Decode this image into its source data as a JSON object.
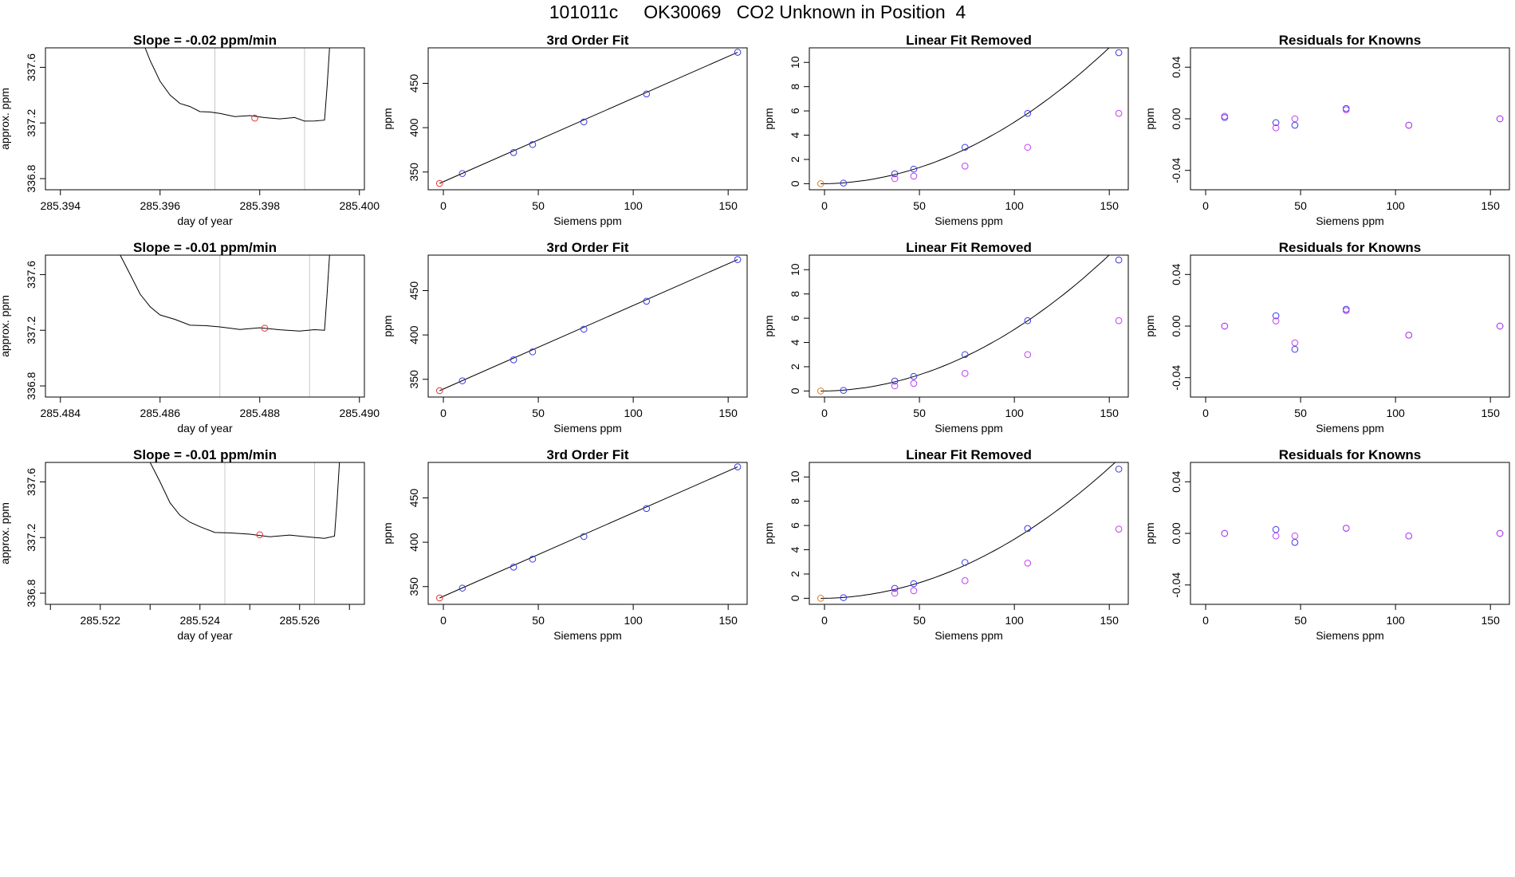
{
  "figure": {
    "title": "101011c     OK30069   CO2 Unknown in Position  4",
    "colors": {
      "axis": "#000000",
      "curve": "#000000",
      "known": "#3a3ae6",
      "knownAlt": "#c040f0",
      "unknown": "#e03030",
      "origin": "#e07a20",
      "vline": "#c8c8c8"
    }
  },
  "chart_data": [
    {
      "type": "line",
      "title": "Slope =  -0.02  ppm/min",
      "xlabel": "day of year",
      "ylabel": "approx. ppm",
      "xlim": [
        285.3937,
        285.4001
      ],
      "ylim": [
        336.72,
        337.74
      ],
      "xticks": [
        285.394,
        285.396,
        285.398,
        285.4
      ],
      "xtick_decimals": 3,
      "yticks": [
        336.8,
        337.2,
        337.6
      ],
      "ytick_decimals": 1,
      "vlines": [
        285.3971,
        285.3989
      ],
      "series": [
        {
          "name": "trace",
          "x": [
            285.3957,
            285.3958,
            285.396,
            285.3962,
            285.3964,
            285.3966,
            285.3968,
            285.397,
            285.3972,
            285.3975,
            285.3978,
            285.3981,
            285.3984,
            285.3987,
            285.3989,
            285.3991,
            285.3993,
            285.39935,
            285.3994
          ],
          "y": [
            337.74,
            337.65,
            337.5,
            337.4,
            337.34,
            337.31,
            337.29,
            337.275,
            337.265,
            337.255,
            337.245,
            337.24,
            337.235,
            337.23,
            337.22,
            337.215,
            337.22,
            337.45,
            337.74
          ]
        }
      ],
      "markers": [
        {
          "x": 285.3979,
          "y": 337.235,
          "color": "unknown"
        }
      ]
    },
    {
      "type": "scatter",
      "title": "3rd Order Fit",
      "xlabel": "Siemens ppm",
      "ylabel": "ppm",
      "xlim": [
        -8,
        160
      ],
      "ylim": [
        330,
        490
      ],
      "xticks": [
        0,
        50,
        100,
        150
      ],
      "xtick_decimals": 0,
      "yticks": [
        350,
        400,
        450
      ],
      "ytick_decimals": 0,
      "line": {
        "x": [
          -2,
          155
        ],
        "y": [
          337.2,
          485
        ]
      },
      "series": [
        {
          "name": "knowns",
          "color": "known",
          "x": [
            10,
            37,
            47,
            74,
            107,
            155
          ],
          "y": [
            348.3,
            372,
            381,
            406.5,
            438,
            485
          ]
        },
        {
          "name": "unknown",
          "color": "unknown",
          "x": [
            -2
          ],
          "y": [
            337.2
          ]
        }
      ]
    },
    {
      "type": "scatter",
      "title": "Linear Fit Removed",
      "xlabel": "Siemens ppm",
      "ylabel": "ppm",
      "xlim": [
        -8,
        160
      ],
      "ylim": [
        -0.5,
        11.2
      ],
      "xticks": [
        0,
        50,
        100,
        150
      ],
      "xtick_decimals": 0,
      "yticks": [
        0,
        2,
        4,
        6,
        8,
        10
      ],
      "ytick_decimals": 0,
      "curve": {
        "coef": [
          -0.005,
          0.0028,
          0.00048
        ]
      },
      "series": [
        {
          "name": "cubic",
          "color": "known",
          "x": [
            10,
            37,
            47,
            74,
            107,
            155
          ],
          "y": [
            0.05,
            0.82,
            1.2,
            3.0,
            5.8,
            10.8
          ]
        },
        {
          "name": "removed",
          "color": "knownAlt",
          "x": [
            37,
            47,
            74,
            107,
            155
          ],
          "y": [
            0.42,
            0.62,
            1.45,
            3.0,
            5.8
          ]
        },
        {
          "name": "origin",
          "color": "origin",
          "x": [
            -2
          ],
          "y": [
            0
          ]
        }
      ]
    },
    {
      "type": "scatter",
      "title": "Residuals for Knowns",
      "xlabel": "Siemens ppm",
      "ylabel": "ppm",
      "xlim": [
        -8,
        160
      ],
      "ylim": [
        -0.055,
        0.055
      ],
      "xticks": [
        0,
        50,
        100,
        150
      ],
      "xtick_decimals": 0,
      "yticks": [
        -0.04,
        0.0,
        0.04
      ],
      "ytick_decimals": 2,
      "series": [
        {
          "name": "a",
          "color": "known",
          "x": [
            10,
            37,
            47,
            74,
            107,
            155
          ],
          "y": [
            0.001,
            -0.003,
            -0.005,
            0.008,
            -0.005,
            0.0
          ]
        },
        {
          "name": "b",
          "color": "knownAlt",
          "x": [
            10,
            37,
            47,
            74,
            107,
            155
          ],
          "y": [
            0.002,
            -0.007,
            0.0,
            0.007,
            -0.005,
            0.0
          ]
        }
      ]
    },
    {
      "type": "line",
      "title": "Slope =  -0.01  ppm/min",
      "xlabel": "day of year",
      "ylabel": "approx. ppm",
      "xlim": [
        285.4837,
        285.4901
      ],
      "ylim": [
        336.72,
        337.74
      ],
      "xticks": [
        285.484,
        285.486,
        285.488,
        285.49
      ],
      "xtick_decimals": 3,
      "yticks": [
        336.8,
        337.2,
        337.6
      ],
      "ytick_decimals": 1,
      "vlines": [
        285.4872,
        285.489
      ],
      "series": [
        {
          "name": "trace",
          "x": [
            285.4852,
            285.4854,
            285.4856,
            285.4858,
            285.486,
            285.4863,
            285.4866,
            285.4869,
            285.4872,
            285.4876,
            285.488,
            285.4884,
            285.4888,
            285.4891,
            285.4893,
            285.48935,
            285.4894
          ],
          "y": [
            337.74,
            337.6,
            337.46,
            337.37,
            337.31,
            337.27,
            337.245,
            337.23,
            337.22,
            337.215,
            337.21,
            337.205,
            337.2,
            337.195,
            337.2,
            337.45,
            337.74
          ]
        }
      ],
      "markers": [
        {
          "x": 285.4881,
          "y": 337.215,
          "color": "unknown"
        }
      ]
    },
    {
      "type": "scatter",
      "title": "3rd Order Fit",
      "xlabel": "Siemens ppm",
      "ylabel": "ppm",
      "xlim": [
        -8,
        160
      ],
      "ylim": [
        330,
        490
      ],
      "xticks": [
        0,
        50,
        100,
        150
      ],
      "xtick_decimals": 0,
      "yticks": [
        350,
        400,
        450
      ],
      "ytick_decimals": 0,
      "line": {
        "x": [
          -2,
          155
        ],
        "y": [
          337.2,
          485
        ]
      },
      "series": [
        {
          "name": "knowns",
          "color": "known",
          "x": [
            10,
            37,
            47,
            74,
            107,
            155
          ],
          "y": [
            348.3,
            372,
            381,
            406.5,
            438,
            485
          ]
        },
        {
          "name": "unknown",
          "color": "unknown",
          "x": [
            -2
          ],
          "y": [
            337.2
          ]
        }
      ]
    },
    {
      "type": "scatter",
      "title": "Linear Fit Removed",
      "xlabel": "Siemens ppm",
      "ylabel": "ppm",
      "xlim": [
        -8,
        160
      ],
      "ylim": [
        -0.5,
        11.2
      ],
      "xticks": [
        0,
        50,
        100,
        150
      ],
      "xtick_decimals": 0,
      "yticks": [
        0,
        2,
        4,
        6,
        8,
        10
      ],
      "ytick_decimals": 0,
      "curve": {
        "coef": [
          -0.005,
          0.0028,
          0.00048
        ]
      },
      "series": [
        {
          "name": "cubic",
          "color": "known",
          "x": [
            10,
            37,
            47,
            74,
            107,
            155
          ],
          "y": [
            0.05,
            0.82,
            1.2,
            3.0,
            5.8,
            10.8
          ]
        },
        {
          "name": "removed",
          "color": "knownAlt",
          "x": [
            37,
            47,
            74,
            107,
            155
          ],
          "y": [
            0.42,
            0.62,
            1.45,
            3.0,
            5.8
          ]
        },
        {
          "name": "origin",
          "color": "origin",
          "x": [
            -2
          ],
          "y": [
            0
          ]
        }
      ]
    },
    {
      "type": "scatter",
      "title": "Residuals for Knowns",
      "xlabel": "Siemens ppm",
      "ylabel": "ppm",
      "xlim": [
        -8,
        160
      ],
      "ylim": [
        -0.055,
        0.055
      ],
      "xticks": [
        0,
        50,
        100,
        150
      ],
      "xtick_decimals": 0,
      "yticks": [
        -0.04,
        0.0,
        0.04
      ],
      "ytick_decimals": 2,
      "series": [
        {
          "name": "a",
          "color": "known",
          "x": [
            10,
            37,
            47,
            74,
            107,
            155
          ],
          "y": [
            0.0,
            0.008,
            -0.018,
            0.013,
            -0.007,
            0.0
          ]
        },
        {
          "name": "b",
          "color": "knownAlt",
          "x": [
            10,
            37,
            47,
            74,
            107,
            155
          ],
          "y": [
            0.0,
            0.004,
            -0.013,
            0.012,
            -0.007,
            0.0
          ]
        }
      ]
    },
    {
      "type": "line",
      "title": "Slope =  -0.01  ppm/min",
      "xlabel": "day of year",
      "ylabel": "approx. ppm",
      "xlim": [
        285.5209,
        285.5273
      ],
      "ylim": [
        336.72,
        337.74
      ],
      "xticks": [
        285.522,
        285.524,
        285.526
      ],
      "xtick_decimals": 3,
      "minor_ticks": [
        285.521,
        285.523,
        285.525,
        285.527
      ],
      "vlines": [
        285.5245,
        285.5263
      ],
      "yticks": [
        336.8,
        337.2,
        337.6
      ],
      "ytick_decimals": 1,
      "series": [
        {
          "name": "trace",
          "x": [
            285.523,
            285.5232,
            285.5234,
            285.5236,
            285.5238,
            285.524,
            285.5243,
            285.5246,
            285.525,
            285.5254,
            285.5258,
            285.5262,
            285.5265,
            285.5267,
            285.52675,
            285.5268
          ],
          "y": [
            337.74,
            337.6,
            337.45,
            337.36,
            337.31,
            337.27,
            337.245,
            337.23,
            337.22,
            337.215,
            337.21,
            337.205,
            337.2,
            337.21,
            337.45,
            337.74
          ]
        }
      ],
      "markers": [
        {
          "x": 285.5252,
          "y": 337.22,
          "color": "unknown"
        }
      ]
    },
    {
      "type": "scatter",
      "title": "3rd Order Fit",
      "xlabel": "Siemens ppm",
      "ylabel": "ppm",
      "xlim": [
        -8,
        160
      ],
      "ylim": [
        330,
        490
      ],
      "xticks": [
        0,
        50,
        100,
        150
      ],
      "xtick_decimals": 0,
      "yticks": [
        350,
        400,
        450
      ],
      "ytick_decimals": 0,
      "line": {
        "x": [
          -2,
          155
        ],
        "y": [
          337.2,
          485
        ]
      },
      "series": [
        {
          "name": "knowns",
          "color": "known",
          "x": [
            10,
            37,
            47,
            74,
            107,
            155
          ],
          "y": [
            348.3,
            372,
            381,
            406.5,
            438,
            485
          ]
        },
        {
          "name": "unknown",
          "color": "unknown",
          "x": [
            -2
          ],
          "y": [
            337.2
          ]
        }
      ]
    },
    {
      "type": "scatter",
      "title": "Linear Fit Removed",
      "xlabel": "Siemens ppm",
      "ylabel": "ppm",
      "xlim": [
        -8,
        160
      ],
      "ylim": [
        -0.5,
        11.2
      ],
      "xticks": [
        0,
        50,
        100,
        150
      ],
      "xtick_decimals": 0,
      "yticks": [
        0,
        2,
        4,
        6,
        8,
        10
      ],
      "ytick_decimals": 0,
      "curve": {
        "coef": [
          -0.005,
          0.0028,
          0.00046
        ]
      },
      "series": [
        {
          "name": "cubic",
          "color": "known",
          "x": [
            10,
            37,
            47,
            74,
            107,
            155
          ],
          "y": [
            0.05,
            0.82,
            1.2,
            2.95,
            5.75,
            10.65
          ]
        },
        {
          "name": "removed",
          "color": "knownAlt",
          "x": [
            37,
            47,
            74,
            107,
            155
          ],
          "y": [
            0.42,
            0.62,
            1.45,
            2.9,
            5.7
          ]
        },
        {
          "name": "origin",
          "color": "origin",
          "x": [
            -2
          ],
          "y": [
            0
          ]
        }
      ]
    },
    {
      "type": "scatter",
      "title": "Residuals for Knowns",
      "xlabel": "Siemens ppm",
      "ylabel": "ppm",
      "xlim": [
        -8,
        160
      ],
      "ylim": [
        -0.055,
        0.055
      ],
      "xticks": [
        0,
        50,
        100,
        150
      ],
      "xtick_decimals": 0,
      "yticks": [
        -0.04,
        0.0,
        0.04
      ],
      "ytick_decimals": 2,
      "series": [
        {
          "name": "a",
          "color": "known",
          "x": [
            10,
            37,
            47,
            74,
            107,
            155
          ],
          "y": [
            0.0,
            0.003,
            -0.007,
            0.004,
            -0.002,
            0.0
          ]
        },
        {
          "name": "b",
          "color": "knownAlt",
          "x": [
            10,
            37,
            47,
            74,
            107,
            155
          ],
          "y": [
            0.0,
            -0.002,
            -0.002,
            0.004,
            -0.002,
            0.0
          ]
        }
      ]
    }
  ]
}
